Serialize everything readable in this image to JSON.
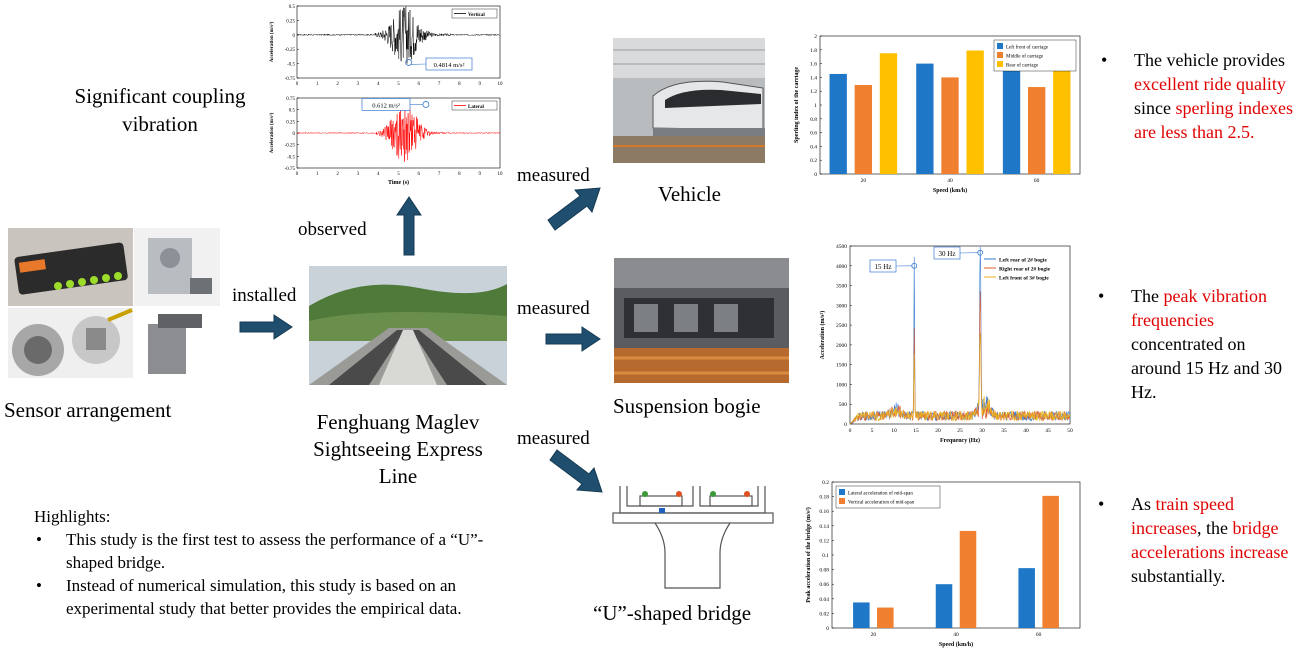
{
  "labels": {
    "coupling": "Significant coupling vibration",
    "observed": "observed",
    "installed": "installed",
    "measured": "measured",
    "sensor": "Sensor arrangement",
    "line": "Fenghuang Maglev Sightseeing Express Line",
    "vehicle": "Vehicle",
    "bogie": "Suspension bogie",
    "bridge": "“U”-shaped bridge"
  },
  "highlights": {
    "title": "Highlights:",
    "items": [
      "This study is the first test to assess the performance of a “U”-shaped bridge.",
      "Instead of numerical simulation, this study is based on an experimental study that better provides the empirical data."
    ]
  },
  "findings": {
    "vehicle": {
      "parts": [
        {
          "text": "The vehicle provides ",
          "red": false
        },
        {
          "text": "excellent ride quality",
          "red": true
        },
        {
          "text": " since ",
          "red": false
        },
        {
          "text": "sperling indexes are less than 2.5.",
          "red": true
        }
      ]
    },
    "bogie": {
      "parts": [
        {
          "text": "The ",
          "red": false
        },
        {
          "text": "peak vibration frequencies",
          "red": true
        },
        {
          "text": " concentrated on around 15 Hz and 30 Hz.",
          "red": false
        }
      ]
    },
    "bridge": {
      "parts": [
        {
          "text": "As ",
          "red": false
        },
        {
          "text": "train speed increases",
          "red": true
        },
        {
          "text": ", the ",
          "red": false
        },
        {
          "text": "bridge accelerations increase",
          "red": true
        },
        {
          "text": " substantially.",
          "red": false
        }
      ]
    }
  },
  "colors": {
    "arrow": "#1f4e6e",
    "highlight_red": "#e00000",
    "blue": "#1f77c8",
    "orange": "#f08030",
    "yellow": "#ffc000"
  },
  "chart_data": [
    {
      "type": "line",
      "id": "vertical_time",
      "series": [
        {
          "name": "Vertical"
        }
      ],
      "ylabel": "Acceleration (m/s²)",
      "xlim": [
        0,
        10
      ],
      "ylim": [
        -0.75,
        0.5
      ],
      "yticks": [
        "0.5",
        "0.25",
        "0",
        "-0.25",
        "-0.5",
        "-0.75"
      ],
      "xticks": [
        "0",
        "1",
        "2",
        "3",
        "4",
        "5",
        "6",
        "7",
        "8",
        "9",
        "10"
      ],
      "annotation": "0.4814 m/s²"
    },
    {
      "type": "line",
      "id": "lateral_time",
      "series": [
        {
          "name": "Lateral"
        }
      ],
      "xlabel": "Time (s)",
      "ylabel": "Acceleration (m/s²)",
      "xlim": [
        0,
        10
      ],
      "ylim": [
        -0.75,
        0.75
      ],
      "yticks": [
        "0.75",
        "0.5",
        "0.25",
        "0",
        "-0.25",
        "-0.5",
        "-0.75"
      ],
      "xticks": [
        "0",
        "1",
        "2",
        "3",
        "4",
        "5",
        "6",
        "7",
        "8",
        "9",
        "10"
      ],
      "annotation": "0.612 m/s²"
    },
    {
      "type": "bar",
      "id": "sperling",
      "categories": [
        "20",
        "40",
        "60"
      ],
      "series": [
        {
          "name": "Left front of carriage",
          "values": [
            1.45,
            1.6,
            1.53
          ]
        },
        {
          "name": "Middle of carriage",
          "values": [
            1.29,
            1.4,
            1.26
          ]
        },
        {
          "name": "Rear of carriage",
          "values": [
            1.75,
            1.79,
            1.6
          ]
        }
      ],
      "xlabel": "Speed (km/h)",
      "ylabel": "Sperling index of the carriage",
      "ylim": [
        0,
        2
      ],
      "yticks": [
        "0",
        "0.2",
        "0.4",
        "0.6",
        "0.8",
        "1",
        "1.2",
        "1.4",
        "1.6",
        "1.8",
        "2"
      ],
      "legend": "top-right"
    },
    {
      "type": "line",
      "id": "bogie_spectrum",
      "series": [
        {
          "name": "Left rear of 2# bogie"
        },
        {
          "name": "Right rear of 2# bogie"
        },
        {
          "name": "Left front of 3# bogie"
        }
      ],
      "xlabel": "Frequency (Hz)",
      "ylabel": "Acceleration (m/s²)",
      "xlim": [
        0,
        50
      ],
      "ylim": [
        0,
        4500
      ],
      "xticks": [
        "0",
        "5",
        "10",
        "15",
        "20",
        "25",
        "30",
        "35",
        "40",
        "45",
        "50"
      ],
      "yticks": [
        "0",
        "500",
        "1000",
        "1500",
        "2000",
        "2500",
        "3000",
        "3500",
        "4000",
        "4500"
      ],
      "annotations": [
        "15 Hz",
        "30 Hz"
      ],
      "peaks": [
        {
          "x": 14.6,
          "y": 4000
        },
        {
          "x": 29.6,
          "y": 4330
        }
      ],
      "legend": "top-right"
    },
    {
      "type": "bar",
      "id": "bridge_accel",
      "categories": [
        "20",
        "40",
        "60"
      ],
      "series": [
        {
          "name": "Lateral acceleration of mid-span",
          "values": [
            0.035,
            0.06,
            0.082
          ]
        },
        {
          "name": "Vertical acceleration of mid-span",
          "values": [
            0.028,
            0.133,
            0.181
          ]
        }
      ],
      "xlabel": "Speed (km/h)",
      "ylabel": "Peak acceleration of the bridge (m/s²)",
      "ylim": [
        0,
        0.2
      ],
      "yticks": [
        "0",
        "0.02",
        "0.04",
        "0.06",
        "0.08",
        "0.1",
        "0.12",
        "0.14",
        "0.16",
        "0.18",
        "0.2"
      ],
      "legend": "top-left"
    }
  ]
}
